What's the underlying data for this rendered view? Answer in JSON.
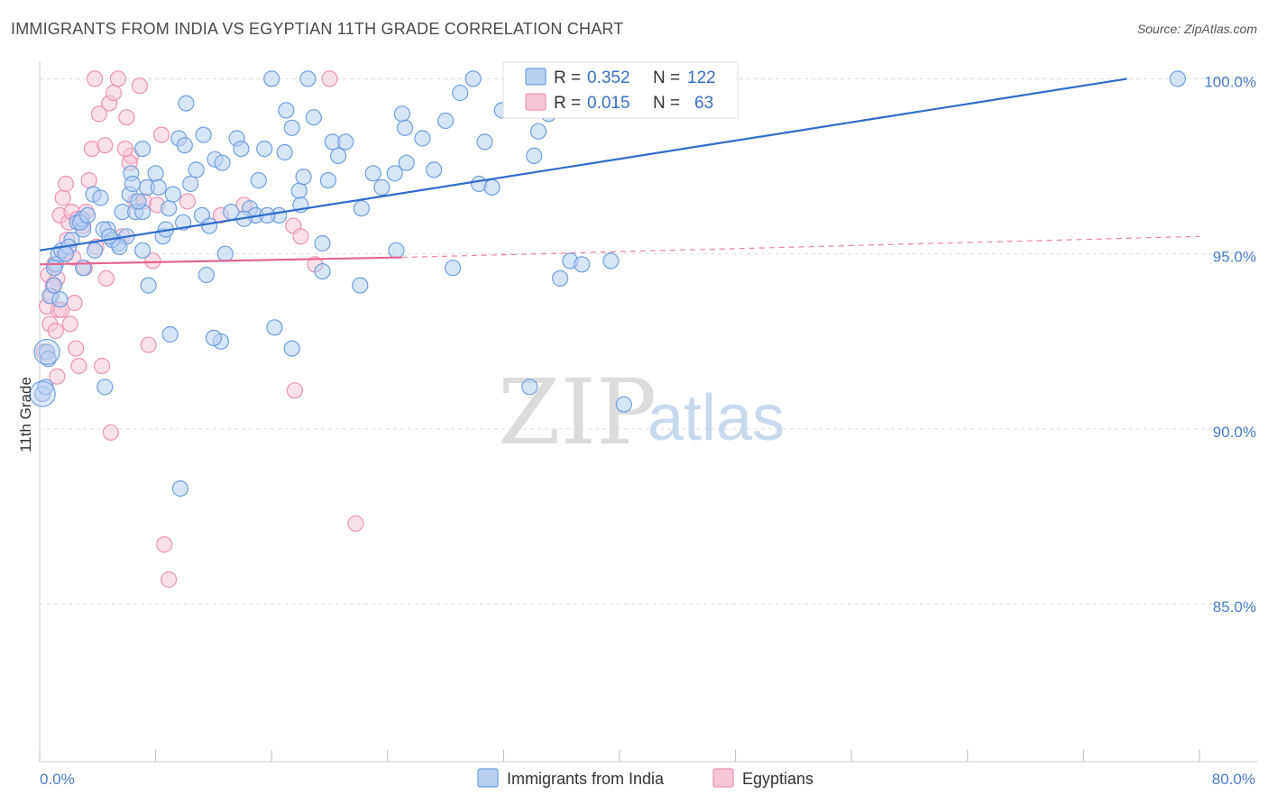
{
  "header": {
    "title": "IMMIGRANTS FROM INDIA VS EGYPTIAN 11TH GRADE CORRELATION CHART",
    "source": "Source: ZipAtlas.com"
  },
  "colors": {
    "blue": "#6fa0e0",
    "blue_fill": "#b7d0f2",
    "blue_line": "#2f6ccb",
    "pink": "#ec94b3",
    "pink_fill": "#f6c6d7",
    "pink_line": "#e2668f",
    "grid": "#dddddd",
    "tick_text": "#4a7cc9"
  },
  "chart_data": {
    "type": "scatter",
    "title": "IMMIGRANTS FROM INDIA VS EGYPTIAN 11TH GRADE CORRELATION CHART",
    "xlabel": "",
    "ylabel": "11th Grade",
    "xlim": [
      0,
      80
    ],
    "ylim": [
      80.5,
      100.5
    ],
    "x_tick_labels": [
      "0.0%",
      "80.0%"
    ],
    "y_ticks": [
      85,
      90,
      95,
      100
    ],
    "y_tick_labels": [
      "85.0%",
      "90.0%",
      "95.0%",
      "100.0%"
    ],
    "legend": [
      {
        "name": "Immigrants from India",
        "R": "0.352",
        "N": "122",
        "R_label": "R =",
        "N_label": "N ="
      },
      {
        "name": "Egyptians",
        "R": "0.015",
        "N": "63",
        "R_label": "R =",
        "N_label": "N ="
      }
    ],
    "watermark": {
      "zip": "ZIP",
      "atlas": "atlas"
    },
    "series": [
      {
        "name": "Immigrants from India",
        "trend": {
          "x": [
            0,
            75
          ],
          "y": [
            95.1,
            100.0
          ]
        },
        "points": [
          [
            0.2,
            91.0
          ],
          [
            0.4,
            91.2
          ],
          [
            0.5,
            92.2
          ],
          [
            0.6,
            92.0
          ],
          [
            0.7,
            93.8
          ],
          [
            1.0,
            94.1
          ],
          [
            1.1,
            94.7
          ],
          [
            1.3,
            95.0
          ],
          [
            1.4,
            93.7
          ],
          [
            2.2,
            95.4
          ],
          [
            2.6,
            95.9
          ],
          [
            3.0,
            95.7
          ],
          [
            3.0,
            94.6
          ],
          [
            3.7,
            96.7
          ],
          [
            3.8,
            95.1
          ],
          [
            4.2,
            96.6
          ],
          [
            4.7,
            95.7
          ],
          [
            5.4,
            95.3
          ],
          [
            5.7,
            96.2
          ],
          [
            6.0,
            95.5
          ],
          [
            6.2,
            96.7
          ],
          [
            6.3,
            97.3
          ],
          [
            6.6,
            96.2
          ],
          [
            7.1,
            96.2
          ],
          [
            7.1,
            98.0
          ],
          [
            7.4,
            96.9
          ],
          [
            8.0,
            97.3
          ],
          [
            8.5,
            95.5
          ],
          [
            8.9,
            96.3
          ],
          [
            9.2,
            96.7
          ],
          [
            9.6,
            98.3
          ],
          [
            10.0,
            98.1
          ],
          [
            10.1,
            99.3
          ],
          [
            10.8,
            97.4
          ],
          [
            11.2,
            96.1
          ],
          [
            11.3,
            98.4
          ],
          [
            11.7,
            95.8
          ],
          [
            12.1,
            97.7
          ],
          [
            12.8,
            95.0
          ],
          [
            13.2,
            96.2
          ],
          [
            13.6,
            98.3
          ],
          [
            14.5,
            96.3
          ],
          [
            14.9,
            96.1
          ],
          [
            15.1,
            97.1
          ],
          [
            15.5,
            98.0
          ],
          [
            16.0,
            100.0
          ],
          [
            16.5,
            96.1
          ],
          [
            17.0,
            99.1
          ],
          [
            17.4,
            98.6
          ],
          [
            17.9,
            96.8
          ],
          [
            18.0,
            96.4
          ],
          [
            18.5,
            100.0
          ],
          [
            18.9,
            98.9
          ],
          [
            19.5,
            95.3
          ],
          [
            19.9,
            97.1
          ],
          [
            20.2,
            98.2
          ],
          [
            20.6,
            97.8
          ],
          [
            21.1,
            98.2
          ],
          [
            22.2,
            96.3
          ],
          [
            23.0,
            97.3
          ],
          [
            23.6,
            96.9
          ],
          [
            24.5,
            97.3
          ],
          [
            25.0,
            99.0
          ],
          [
            25.2,
            98.6
          ],
          [
            25.3,
            97.6
          ],
          [
            27.2,
            97.4
          ],
          [
            28.0,
            98.8
          ],
          [
            29.0,
            99.6
          ],
          [
            29.9,
            100.0
          ],
          [
            30.3,
            97.0
          ],
          [
            30.7,
            98.2
          ],
          [
            31.9,
            99.1
          ],
          [
            33.1,
            99.1
          ],
          [
            34.1,
            97.8
          ],
          [
            34.4,
            98.5
          ],
          [
            35.1,
            99.0
          ],
          [
            36.6,
            94.8
          ],
          [
            37.4,
            94.7
          ],
          [
            39.4,
            94.8
          ],
          [
            1.0,
            94.6
          ],
          [
            1.5,
            95.1
          ],
          [
            2.0,
            95.2
          ],
          [
            2.9,
            96.0
          ],
          [
            4.4,
            95.7
          ],
          [
            5.0,
            95.4
          ],
          [
            7.1,
            95.1
          ],
          [
            8.7,
            95.7
          ],
          [
            11.5,
            94.4
          ],
          [
            12.5,
            92.5
          ],
          [
            9.7,
            88.3
          ],
          [
            4.5,
            91.2
          ],
          [
            9.0,
            92.7
          ],
          [
            12.0,
            92.6
          ],
          [
            16.2,
            92.9
          ],
          [
            17.4,
            92.3
          ],
          [
            19.5,
            94.5
          ],
          [
            22.1,
            94.1
          ],
          [
            24.6,
            95.1
          ],
          [
            28.5,
            94.6
          ],
          [
            35.9,
            94.3
          ],
          [
            33.8,
            91.2
          ],
          [
            40.3,
            90.7
          ],
          [
            78.5,
            100.0
          ],
          [
            7.5,
            94.1
          ],
          [
            1.8,
            95.0
          ],
          [
            2.8,
            95.9
          ],
          [
            4.8,
            95.5
          ],
          [
            6.8,
            96.5
          ],
          [
            8.2,
            96.9
          ],
          [
            10.4,
            97.0
          ],
          [
            13.9,
            98.0
          ],
          [
            15.7,
            96.1
          ],
          [
            18.2,
            97.2
          ],
          [
            3.3,
            96.1
          ],
          [
            5.5,
            95.2
          ],
          [
            9.9,
            95.9
          ],
          [
            14.1,
            96.0
          ],
          [
            6.4,
            97.0
          ],
          [
            12.6,
            97.6
          ],
          [
            16.9,
            97.9
          ],
          [
            26.4,
            98.3
          ],
          [
            31.2,
            96.9
          ]
        ]
      },
      {
        "name": "Egyptians",
        "trend": {
          "x": [
            0,
            25
          ],
          "y": [
            94.7,
            94.9
          ]
        },
        "trend_dashed": {
          "x": [
            25,
            80
          ],
          "y": [
            94.9,
            95.5
          ]
        },
        "points": [
          [
            0.3,
            92.2
          ],
          [
            0.5,
            93.5
          ],
          [
            0.6,
            94.4
          ],
          [
            0.7,
            93.0
          ],
          [
            0.8,
            93.8
          ],
          [
            1.0,
            94.7
          ],
          [
            1.1,
            92.8
          ],
          [
            1.2,
            94.3
          ],
          [
            1.3,
            93.4
          ],
          [
            1.4,
            96.1
          ],
          [
            1.6,
            96.6
          ],
          [
            1.8,
            97.0
          ],
          [
            1.9,
            95.4
          ],
          [
            2.0,
            95.9
          ],
          [
            2.2,
            96.2
          ],
          [
            2.3,
            94.9
          ],
          [
            2.5,
            92.3
          ],
          [
            2.7,
            91.8
          ],
          [
            3.0,
            95.8
          ],
          [
            3.2,
            96.2
          ],
          [
            3.4,
            97.1
          ],
          [
            3.6,
            98.0
          ],
          [
            3.9,
            95.2
          ],
          [
            4.1,
            99.0
          ],
          [
            4.3,
            91.8
          ],
          [
            4.5,
            98.1
          ],
          [
            4.8,
            99.3
          ],
          [
            5.1,
            99.6
          ],
          [
            5.4,
            100.0
          ],
          [
            5.7,
            95.5
          ],
          [
            6.0,
            98.9
          ],
          [
            6.3,
            97.8
          ],
          [
            6.6,
            96.5
          ],
          [
            6.9,
            99.8
          ],
          [
            7.2,
            96.5
          ],
          [
            7.5,
            92.4
          ],
          [
            7.8,
            94.8
          ],
          [
            8.1,
            96.4
          ],
          [
            8.4,
            98.4
          ],
          [
            10.2,
            96.5
          ],
          [
            12.5,
            96.1
          ],
          [
            14.1,
            96.4
          ],
          [
            17.5,
            95.8
          ],
          [
            18.0,
            95.5
          ],
          [
            19.0,
            94.7
          ],
          [
            20.0,
            100.0
          ],
          [
            21.8,
            87.3
          ],
          [
            17.6,
            91.1
          ],
          [
            4.9,
            89.9
          ],
          [
            8.6,
            86.7
          ],
          [
            8.9,
            85.7
          ],
          [
            3.8,
            100.0
          ],
          [
            2.4,
            93.6
          ],
          [
            1.5,
            93.4
          ],
          [
            1.2,
            91.5
          ],
          [
            0.9,
            94.1
          ],
          [
            2.1,
            93.0
          ],
          [
            1.7,
            95.0
          ],
          [
            4.6,
            94.3
          ],
          [
            6.2,
            97.6
          ],
          [
            3.1,
            94.6
          ],
          [
            2.6,
            96.0
          ],
          [
            5.9,
            98.0
          ]
        ]
      }
    ]
  }
}
